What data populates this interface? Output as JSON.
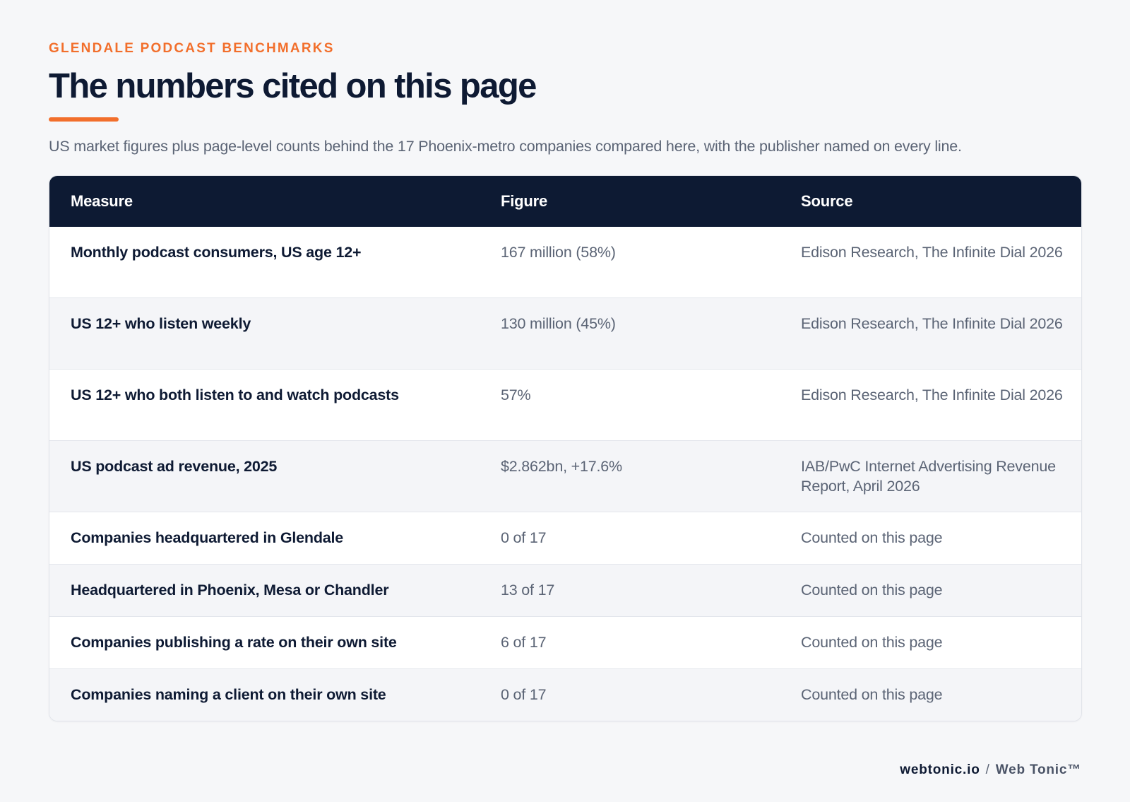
{
  "header": {
    "eyebrow": "GLENDALE PODCAST BENCHMARKS",
    "title": "The numbers cited on this page",
    "subtitle": "US market figures plus page-level counts behind the 17 Phoenix-metro companies compared here, with the publisher named on every line."
  },
  "table": {
    "columns": [
      "Measure",
      "Figure",
      "Source"
    ],
    "rows": [
      {
        "measure": "Monthly podcast consumers, US age 12+",
        "figure": "167 million (58%)",
        "source": "Edison Research, The Infinite Dial 2026"
      },
      {
        "measure": "US 12+ who listen weekly",
        "figure": "130 million (45%)",
        "source": "Edison Research, The Infinite Dial 2026"
      },
      {
        "measure": "US 12+ who both listen to and watch podcasts",
        "figure": "57%",
        "source": "Edison Research, The Infinite Dial 2026"
      },
      {
        "measure": "US podcast ad revenue, 2025",
        "figure": "$2.862bn, +17.6%",
        "source": "IAB/PwC Internet Advertising Revenue Report, April 2026"
      },
      {
        "measure": "Companies headquartered in Glendale",
        "figure": "0 of 17",
        "source": "Counted on this page"
      },
      {
        "measure": "Headquartered in Phoenix, Mesa or Chandler",
        "figure": "13 of 17",
        "source": "Counted on this page"
      },
      {
        "measure": "Companies publishing a rate on their own site",
        "figure": "6 of 17",
        "source": "Counted on this page"
      },
      {
        "measure": "Companies naming a client on their own site",
        "figure": "0 of 17",
        "source": "Counted on this page"
      }
    ]
  },
  "footer": {
    "domain": "webtonic.io",
    "separator": "/",
    "brand": "Web Tonic™"
  },
  "colors": {
    "accent": "#f26f2c",
    "header_bg": "#0d1a33",
    "page_bg": "#f6f7f9"
  }
}
